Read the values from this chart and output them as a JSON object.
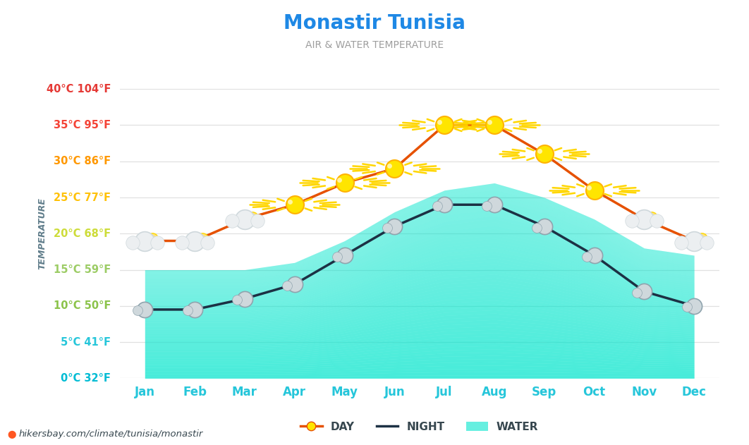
{
  "title": "Monastir Tunisia",
  "subtitle": "AIR & WATER TEMPERATURE",
  "months": [
    "Jan",
    "Feb",
    "Mar",
    "Apr",
    "May",
    "Jun",
    "Jul",
    "Aug",
    "Sep",
    "Oct",
    "Nov",
    "Dec"
  ],
  "day_temps": [
    19,
    19,
    22,
    24,
    27,
    29,
    35,
    35,
    31,
    26,
    22,
    19
  ],
  "night_temps": [
    9.5,
    9.5,
    11,
    13,
    17,
    21,
    24,
    24,
    21,
    17,
    12,
    10
  ],
  "water_temps": [
    15,
    15,
    15,
    16,
    19,
    23,
    26,
    27,
    25,
    22,
    18,
    17
  ],
  "ylim_min": 0,
  "ylim_max": 40,
  "yticks": [
    0,
    5,
    10,
    15,
    20,
    25,
    30,
    35,
    40
  ],
  "ytick_labels": [
    "0°C 32°F",
    "5°C 41°F",
    "10°C 50°F",
    "15°C 59°F",
    "20°C 68°F",
    "25°C 77°F",
    "30°C 86°F",
    "35°C 95°F",
    "40°C 104°F"
  ],
  "ytick_colors": [
    "#00bcd4",
    "#26c6da",
    "#8bc34a",
    "#9ccc65",
    "#cddc39",
    "#ffc107",
    "#ff9800",
    "#f44336",
    "#e53935"
  ],
  "title_color": "#1E88E5",
  "subtitle_color": "#9E9E9E",
  "day_line_color": "#E65100",
  "night_line_color": "#1C3144",
  "water_color_top": "#00E5CC",
  "water_color_bottom": "#B2DFDB",
  "water_alpha": 0.55,
  "grid_color": "#E0E0E0",
  "bg_color": "#FFFFFF",
  "month_label_color": "#26C6DA",
  "watermark": "hikersbay.com/climate/tunisia/monastir",
  "temp_label_color": "#607D8B",
  "sun_threshold": 23
}
